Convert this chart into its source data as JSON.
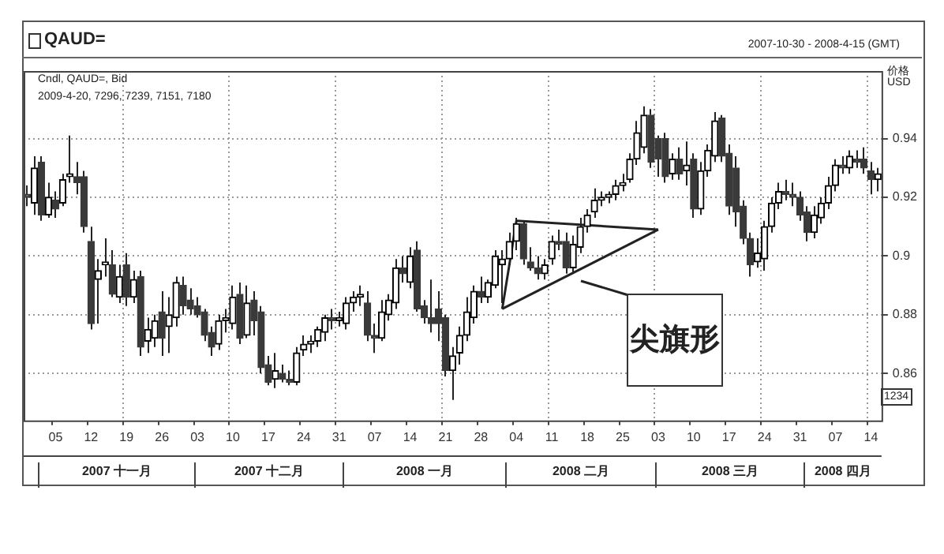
{
  "chart_data": {
    "type": "candlestick",
    "title": "QAUD=",
    "subtitle": "Cndl, QAUD=, Bid",
    "ylabel": "价格 USD",
    "marker": "none",
    "series": [
      {
        "type": "line",
        "color": "#222222",
        "values": [
          null,
          null,
          null,
          null,
          null,
          null,
          null,
          null,
          null,
          null,
          null,
          null,
          null,
          null,
          null,
          null,
          null,
          null,
          null,
          null,
          null,
          null,
          null,
          null,
          null,
          null,
          null,
          null,
          null,
          null,
          null,
          null,
          null,
          null,
          null,
          null,
          null,
          null,
          null,
          null,
          null,
          null,
          null,
          null,
          null,
          null,
          null,
          null,
          null,
          null,
          null,
          null,
          null,
          null,
          null,
          null,
          null,
          null,
          null,
          null,
          null,
          null,
          null,
          null,
          null,
          null,
          null,
          null,
          null,
          0.912,
          null,
          null,
          null,
          null,
          null,
          null,
          null,
          null,
          null,
          null,
          null,
          null,
          null,
          null,
          null,
          null,
          null,
          null,
          null,
          0.909,
          null,
          null,
          null,
          null,
          null,
          null,
          null,
          null,
          null,
          null,
          null,
          null,
          null,
          null,
          null,
          null,
          null,
          null,
          null,
          null,
          null,
          null,
          null,
          null,
          null,
          null,
          null,
          null,
          null,
          null,
          null
        ]
      },
      {
        "type": "line",
        "color": "#222222",
        "values": [
          null,
          null,
          null,
          null,
          null,
          null,
          null,
          null,
          null,
          null,
          null,
          null,
          null,
          null,
          null,
          null,
          null,
          null,
          null,
          null,
          null,
          null,
          null,
          null,
          null,
          null,
          null,
          null,
          null,
          null,
          null,
          null,
          null,
          null,
          null,
          null,
          null,
          null,
          null,
          null,
          null,
          null,
          null,
          null,
          null,
          null,
          null,
          null,
          null,
          null,
          null,
          null,
          null,
          null,
          null,
          null,
          null,
          null,
          null,
          null,
          null,
          null,
          null,
          null,
          null,
          null,
          null,
          0.882,
          null,
          null,
          null,
          null,
          null,
          null,
          null,
          null,
          null,
          null,
          null,
          null,
          null,
          null,
          null,
          null,
          null,
          null,
          null,
          null,
          null,
          0.909,
          null,
          null,
          null,
          null,
          null,
          null,
          null,
          null,
          null,
          null,
          null,
          null,
          null,
          null,
          null,
          null,
          null,
          null,
          null,
          null,
          null,
          null,
          null,
          null,
          null,
          null,
          null,
          null,
          null,
          null,
          null
        ]
      },
      {
        "type": "line",
        "color": "#222222",
        "values": [
          null,
          null,
          null,
          null,
          null,
          null,
          null,
          null,
          null,
          null,
          null,
          null,
          null,
          null,
          null,
          null,
          null,
          null,
          null,
          null,
          null,
          null,
          null,
          null,
          null,
          null,
          null,
          null,
          null,
          null,
          null,
          null,
          null,
          null,
          null,
          null,
          null,
          null,
          null,
          null,
          null,
          null,
          null,
          null,
          null,
          null,
          null,
          null,
          null,
          null,
          null,
          null,
          null,
          null,
          null,
          null,
          null,
          null,
          null,
          null,
          null,
          null,
          null,
          null,
          null,
          null,
          null,
          0.882,
          null,
          0.912,
          null,
          null,
          null,
          null,
          null,
          null,
          null,
          null,
          null,
          null,
          null,
          null,
          null,
          null,
          null,
          null,
          null,
          null,
          null,
          null,
          null,
          null,
          null,
          null,
          null,
          null,
          null,
          null,
          null,
          null,
          null,
          null,
          null,
          null,
          null,
          null,
          null,
          null,
          null,
          null,
          null,
          null,
          null,
          null,
          null,
          null,
          null,
          null,
          null,
          null,
          null
        ]
      }
    ],
    "ylim": [
      0.844,
      0.963
    ],
    "yticks": [
      0.86,
      0.88,
      0.9,
      0.92,
      0.94
    ],
    "grid": true,
    "legend": false,
    "annotations": [
      "2009-4-20, 7296, 7239, 7151, 7180",
      "2007-10-30 - 2008-4-15 (GMT)",
      "1234",
      "尖旗形",
      "2007 十一月",
      "2007 十二月",
      "2008 一月",
      "2008 二月",
      "2008 三月",
      "2008 四月"
    ],
    "categories": [
      null,
      null,
      null,
      null,
      "05",
      null,
      null,
      null,
      null,
      "12",
      null,
      null,
      null,
      null,
      "19",
      null,
      null,
      null,
      null,
      "26",
      null,
      null,
      null,
      null,
      "03",
      null,
      null,
      null,
      null,
      "10",
      null,
      null,
      null,
      null,
      "17",
      null,
      null,
      null,
      null,
      "24",
      null,
      null,
      null,
      null,
      "31",
      null,
      null,
      null,
      null,
      "07",
      null,
      null,
      null,
      null,
      "14",
      null,
      null,
      null,
      null,
      "21",
      null,
      null,
      null,
      null,
      "28",
      null,
      null,
      null,
      null,
      "04",
      null,
      null,
      null,
      null,
      "11",
      null,
      null,
      null,
      null,
      "18",
      null,
      null,
      null,
      null,
      "25",
      null,
      null,
      null,
      null,
      "03",
      null,
      null,
      null,
      null,
      "10",
      null,
      null,
      null,
      null,
      "17",
      null,
      null,
      null,
      null,
      "24",
      null,
      null,
      null,
      null,
      "31",
      null,
      null,
      null,
      null,
      "07",
      null,
      null,
      null,
      null,
      "14",
      null
    ],
    "ohlc": [
      [
        0.921,
        0.924,
        0.917,
        0.92
      ],
      [
        0.918,
        0.934,
        0.914,
        0.93
      ],
      [
        0.932,
        0.934,
        0.912,
        0.914
      ],
      [
        0.914,
        0.925,
        0.913,
        0.92
      ],
      [
        0.919,
        0.922,
        0.913,
        0.916
      ],
      [
        0.918,
        0.928,
        0.917,
        0.926
      ],
      [
        0.927,
        0.941,
        0.925,
        0.928
      ],
      [
        0.927,
        0.932,
        0.921,
        0.925
      ],
      [
        0.927,
        0.929,
        0.908,
        0.91
      ],
      [
        0.905,
        0.91,
        0.875,
        0.877
      ],
      [
        0.892,
        0.899,
        0.877,
        0.895
      ],
      [
        0.897,
        0.906,
        0.893,
        0.898
      ],
      [
        0.897,
        0.902,
        0.886,
        0.887
      ],
      [
        0.886,
        0.897,
        0.884,
        0.893
      ],
      [
        0.897,
        0.901,
        0.883,
        0.886
      ],
      [
        0.886,
        0.895,
        0.884,
        0.892
      ],
      [
        0.893,
        0.895,
        0.866,
        0.869
      ],
      [
        0.871,
        0.879,
        0.867,
        0.875
      ],
      [
        0.872,
        0.88,
        0.869,
        0.878
      ],
      [
        0.881,
        0.888,
        0.866,
        0.872
      ],
      [
        0.876,
        0.886,
        0.867,
        0.88
      ],
      [
        0.879,
        0.893,
        0.876,
        0.891
      ],
      [
        0.89,
        0.893,
        0.88,
        0.883
      ],
      [
        0.885,
        0.889,
        0.88,
        0.882
      ],
      [
        0.883,
        0.886,
        0.879,
        0.88
      ],
      [
        0.881,
        0.882,
        0.871,
        0.873
      ],
      [
        0.874,
        0.876,
        0.866,
        0.869
      ],
      [
        0.87,
        0.88,
        0.868,
        0.878
      ],
      [
        0.878,
        0.882,
        0.874,
        0.879
      ],
      [
        0.877,
        0.89,
        0.875,
        0.886
      ],
      [
        0.887,
        0.891,
        0.87,
        0.872
      ],
      [
        0.873,
        0.89,
        0.872,
        0.884
      ],
      [
        0.885,
        0.888,
        0.873,
        0.878
      ],
      [
        0.881,
        0.883,
        0.86,
        0.862
      ],
      [
        0.863,
        0.866,
        0.856,
        0.857
      ],
      [
        0.858,
        0.867,
        0.855,
        0.861
      ],
      [
        0.86,
        0.863,
        0.857,
        0.858
      ],
      [
        0.858,
        0.861,
        0.856,
        0.857
      ],
      [
        0.857,
        0.869,
        0.856,
        0.867
      ],
      [
        0.868,
        0.873,
        0.866,
        0.87
      ],
      [
        0.87,
        0.873,
        0.867,
        0.871
      ],
      [
        0.871,
        0.876,
        0.869,
        0.875
      ],
      [
        0.874,
        0.88,
        0.871,
        0.879
      ],
      [
        0.879,
        0.882,
        0.875,
        0.878
      ],
      [
        0.878,
        0.881,
        0.876,
        0.879
      ],
      [
        0.877,
        0.886,
        0.875,
        0.884
      ],
      [
        0.884,
        0.888,
        0.881,
        0.886
      ],
      [
        0.886,
        0.89,
        0.883,
        0.887
      ],
      [
        0.884,
        0.888,
        0.871,
        0.873
      ],
      [
        0.873,
        0.877,
        0.867,
        0.872
      ],
      [
        0.872,
        0.885,
        0.871,
        0.881
      ],
      [
        0.88,
        0.887,
        0.878,
        0.885
      ],
      [
        0.884,
        0.899,
        0.882,
        0.896
      ],
      [
        0.896,
        0.9,
        0.891,
        0.894
      ],
      [
        0.891,
        0.903,
        0.889,
        0.9
      ],
      [
        0.902,
        0.905,
        0.881,
        0.882
      ],
      [
        0.883,
        0.885,
        0.877,
        0.879
      ],
      [
        0.879,
        0.892,
        0.874,
        0.877
      ],
      [
        0.882,
        0.888,
        0.871,
        0.877
      ],
      [
        0.879,
        0.88,
        0.859,
        0.861
      ],
      [
        0.861,
        0.869,
        0.851,
        0.866
      ],
      [
        0.867,
        0.876,
        0.863,
        0.873
      ],
      [
        0.873,
        0.886,
        0.871,
        0.881
      ],
      [
        0.879,
        0.89,
        0.877,
        0.888
      ],
      [
        0.888,
        0.893,
        0.884,
        0.886
      ],
      [
        0.886,
        0.892,
        0.884,
        0.891
      ],
      [
        0.89,
        0.902,
        0.889,
        0.9
      ],
      [
        0.897,
        0.902,
        0.884,
        0.899
      ],
      [
        0.899,
        0.908,
        0.897,
        0.905
      ],
      [
        0.905,
        0.913,
        0.902,
        0.911
      ],
      [
        0.911,
        0.912,
        0.897,
        0.899
      ],
      [
        0.898,
        0.903,
        0.895,
        0.896
      ],
      [
        0.896,
        0.9,
        0.892,
        0.894
      ],
      [
        0.894,
        0.899,
        0.892,
        0.897
      ],
      [
        0.899,
        0.907,
        0.897,
        0.905
      ],
      [
        0.905,
        0.909,
        0.902,
        0.904
      ],
      [
        0.905,
        0.908,
        0.894,
        0.896
      ],
      [
        0.896,
        0.907,
        0.894,
        0.904
      ],
      [
        0.903,
        0.913,
        0.901,
        0.91
      ],
      [
        0.91,
        0.916,
        0.908,
        0.914
      ],
      [
        0.915,
        0.923,
        0.913,
        0.919
      ],
      [
        0.919,
        0.922,
        0.917,
        0.92
      ],
      [
        0.92,
        0.922,
        0.918,
        0.921
      ],
      [
        0.921,
        0.926,
        0.919,
        0.924
      ],
      [
        0.924,
        0.928,
        0.922,
        0.925
      ],
      [
        0.926,
        0.935,
        0.925,
        0.933
      ],
      [
        0.933,
        0.946,
        0.931,
        0.942
      ],
      [
        0.937,
        0.951,
        0.935,
        0.948
      ],
      [
        0.948,
        0.95,
        0.93,
        0.932
      ],
      [
        0.94,
        0.941,
        0.927,
        0.933
      ],
      [
        0.94,
        0.942,
        0.925,
        0.927
      ],
      [
        0.928,
        0.935,
        0.926,
        0.933
      ],
      [
        0.933,
        0.937,
        0.926,
        0.928
      ],
      [
        0.929,
        0.939,
        0.924,
        0.931
      ],
      [
        0.933,
        0.935,
        0.913,
        0.916
      ],
      [
        0.916,
        0.932,
        0.914,
        0.929
      ],
      [
        0.929,
        0.938,
        0.927,
        0.936
      ],
      [
        0.934,
        0.949,
        0.932,
        0.946
      ],
      [
        0.947,
        0.948,
        0.932,
        0.934
      ],
      [
        0.935,
        0.938,
        0.914,
        0.917
      ],
      [
        0.93,
        0.934,
        0.91,
        0.915
      ],
      [
        0.917,
        0.919,
        0.904,
        0.906
      ],
      [
        0.906,
        0.908,
        0.893,
        0.897
      ],
      [
        0.898,
        0.906,
        0.896,
        0.901
      ],
      [
        0.899,
        0.912,
        0.895,
        0.91
      ],
      [
        0.91,
        0.92,
        0.908,
        0.918
      ],
      [
        0.918,
        0.925,
        0.916,
        0.922
      ],
      [
        0.922,
        0.926,
        0.919,
        0.921
      ],
      [
        0.921,
        0.925,
        0.917,
        0.92
      ],
      [
        0.92,
        0.922,
        0.912,
        0.914
      ],
      [
        0.915,
        0.917,
        0.905,
        0.908
      ],
      [
        0.908,
        0.917,
        0.906,
        0.914
      ],
      [
        0.913,
        0.92,
        0.911,
        0.918
      ],
      [
        0.918,
        0.927,
        0.916,
        0.924
      ],
      [
        0.924,
        0.933,
        0.922,
        0.931
      ],
      [
        0.931,
        0.934,
        0.928,
        0.93
      ],
      [
        0.93,
        0.936,
        0.928,
        0.934
      ],
      [
        0.933,
        0.936,
        0.93,
        0.932
      ],
      [
        0.933,
        0.937,
        0.928,
        0.93
      ],
      [
        0.929,
        0.932,
        0.921,
        0.926
      ],
      [
        0.926,
        0.93,
        0.922,
        0.928
      ]
    ]
  }
}
